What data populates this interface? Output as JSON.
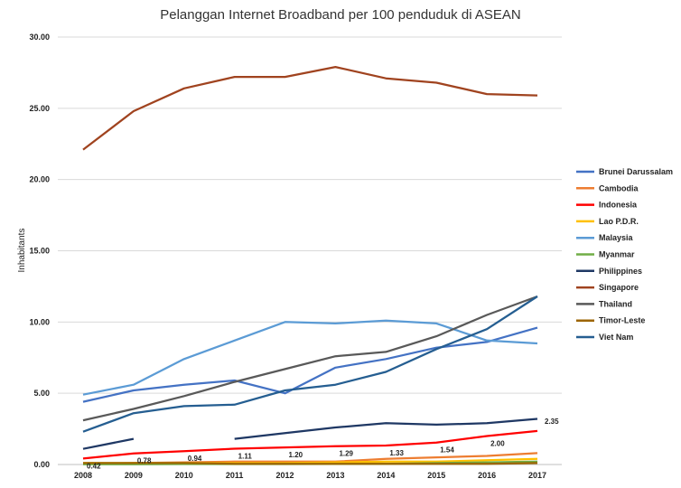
{
  "chart_data": {
    "type": "line",
    "title": "Pelanggan Internet Broadband per 100 penduduk di ASEAN",
    "xlabel": "",
    "ylabel": "Inhabitants",
    "ylim": [
      0,
      30
    ],
    "y_ticks": [
      "0.00",
      "5.00",
      "10.00",
      "15.00",
      "20.00",
      "25.00",
      "30.00"
    ],
    "x": [
      "2008",
      "2009",
      "2010",
      "2011",
      "2012",
      "2013",
      "2014",
      "2015",
      "2016",
      "2017"
    ],
    "grid": true,
    "legend_position": "right",
    "series": [
      {
        "name": "Brunei Darussalam",
        "color": "#4472C4",
        "values": [
          4.4,
          5.2,
          5.6,
          5.9,
          5.0,
          6.8,
          7.4,
          8.2,
          8.6,
          9.6
        ]
      },
      {
        "name": "Cambodia",
        "color": "#ED7D31",
        "values": [
          0.05,
          0.1,
          0.15,
          0.2,
          0.2,
          0.2,
          0.4,
          0.5,
          0.6,
          0.8
        ]
      },
      {
        "name": "Indonesia",
        "color": "#FF0000",
        "values": [
          0.42,
          0.78,
          0.94,
          1.11,
          1.2,
          1.29,
          1.33,
          1.54,
          2.0,
          2.35
        ],
        "data_labels": [
          "0.42",
          "0.78",
          "0.94",
          "1.11",
          "1.20",
          "1.29",
          "1.33",
          "1.54",
          "2.00",
          "2.35"
        ]
      },
      {
        "name": "Lao P.D.R.",
        "color": "#FFC000",
        "values": [
          0.1,
          0.1,
          0.1,
          0.1,
          0.1,
          0.15,
          0.2,
          0.2,
          0.3,
          0.4
        ]
      },
      {
        "name": "Malaysia",
        "color": "#5B9BD5",
        "values": [
          4.9,
          5.6,
          7.4,
          8.7,
          10.0,
          9.9,
          10.1,
          9.9,
          8.7,
          8.5
        ]
      },
      {
        "name": "Myanmar",
        "color": "#70AD47",
        "values": [
          0.02,
          0.02,
          0.03,
          0.03,
          0.03,
          0.04,
          0.05,
          0.1,
          0.15,
          0.2
        ]
      },
      {
        "name": "Philippines",
        "color": "#1F3864",
        "values": [
          1.1,
          1.8,
          null,
          1.8,
          2.2,
          2.6,
          2.9,
          2.8,
          2.9,
          3.2
        ]
      },
      {
        "name": "Singapore",
        "color": "#A0431F",
        "values": [
          22.1,
          24.8,
          26.4,
          27.2,
          27.2,
          27.9,
          27.1,
          26.8,
          26.0,
          25.9
        ]
      },
      {
        "name": "Thailand",
        "color": "#595959",
        "values": [
          3.1,
          3.9,
          4.8,
          5.8,
          6.7,
          7.6,
          7.9,
          9.0,
          10.5,
          11.8
        ]
      },
      {
        "name": "Timor-Leste",
        "color": "#9C6500",
        "values": [
          0.1,
          0.1,
          0.1,
          0.05,
          0.05,
          0.05,
          0.05,
          0.05,
          0.05,
          0.1
        ]
      },
      {
        "name": "Viet Nam",
        "color": "#255E91",
        "values": [
          2.3,
          3.6,
          4.1,
          4.2,
          5.2,
          5.6,
          6.5,
          8.1,
          9.5,
          11.8
        ]
      }
    ]
  }
}
